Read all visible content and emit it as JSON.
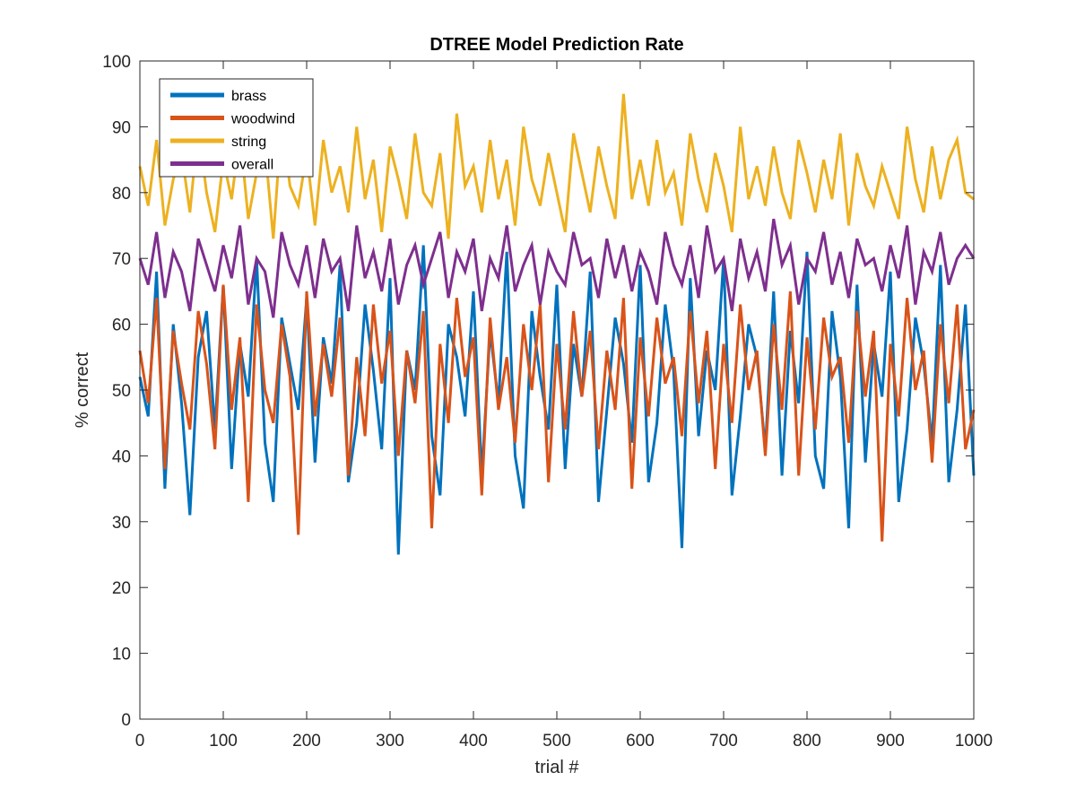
{
  "chart_data": {
    "type": "line",
    "title": "DTREE Model Prediction Rate",
    "xlabel": "trial #",
    "ylabel": "% correct",
    "xlim": [
      0,
      1000
    ],
    "ylim": [
      0,
      100
    ],
    "xticks": [
      0,
      100,
      200,
      300,
      400,
      500,
      600,
      700,
      800,
      900,
      1000
    ],
    "yticks": [
      0,
      10,
      20,
      30,
      40,
      50,
      60,
      70,
      80,
      90,
      100
    ],
    "grid": false,
    "legend_position": "top-left",
    "x_step": 100,
    "series": [
      {
        "name": "brass",
        "color": "#0072BD",
        "values": [
          52,
          46,
          68,
          35,
          60,
          48,
          31,
          55,
          62,
          44,
          66,
          38,
          57,
          49,
          70,
          42,
          33,
          61,
          54,
          47,
          64,
          39,
          58,
          51,
          69,
          36,
          45,
          63,
          53,
          41,
          67,
          25,
          56,
          50,
          72,
          43,
          34,
          60,
          55,
          46,
          65,
          37,
          59,
          48,
          71,
          40,
          32,
          62,
          52,
          44,
          66,
          38,
          57,
          49,
          68,
          33,
          47,
          61,
          54,
          42,
          69,
          36,
          45,
          63,
          53,
          26,
          67,
          43,
          56,
          50,
          70,
          34,
          46,
          60,
          55,
          41,
          65,
          37,
          59,
          48,
          71,
          40,
          35,
          62,
          52,
          29,
          66,
          39,
          57,
          49,
          68,
          33,
          44,
          61,
          54,
          42,
          69,
          36,
          47,
          63,
          37
        ]
      },
      {
        "name": "woodwind",
        "color": "#D95319",
        "values": [
          56,
          48,
          64,
          38,
          59,
          51,
          44,
          62,
          54,
          41,
          66,
          47,
          58,
          33,
          63,
          50,
          45,
          60,
          52,
          28,
          65,
          46,
          57,
          49,
          61,
          37,
          55,
          43,
          63,
          51,
          59,
          40,
          56,
          48,
          62,
          29,
          57,
          45,
          64,
          52,
          58,
          34,
          61,
          47,
          55,
          42,
          60,
          50,
          63,
          36,
          57,
          44,
          62,
          49,
          59,
          41,
          56,
          47,
          64,
          35,
          58,
          46,
          61,
          51,
          55,
          43,
          62,
          48,
          59,
          38,
          57,
          45,
          63,
          50,
          56,
          40,
          60,
          47,
          65,
          37,
          58,
          44,
          61,
          52,
          55,
          42,
          62,
          49,
          59,
          27,
          57,
          46,
          64,
          50,
          56,
          39,
          60,
          48,
          63,
          41,
          47
        ]
      },
      {
        "name": "string",
        "color": "#EDB120",
        "values": [
          84,
          78,
          88,
          75,
          82,
          86,
          77,
          90,
          80,
          74,
          85,
          79,
          89,
          76,
          83,
          87,
          73,
          91,
          81,
          78,
          86,
          75,
          88,
          80,
          84,
          77,
          90,
          79,
          85,
          74,
          87,
          82,
          76,
          89,
          80,
          78,
          86,
          73,
          92,
          81,
          84,
          77,
          88,
          79,
          85,
          75,
          90,
          82,
          78,
          86,
          80,
          74,
          89,
          83,
          77,
          87,
          81,
          76,
          95,
          79,
          85,
          78,
          88,
          80,
          83,
          75,
          89,
          82,
          77,
          86,
          81,
          74,
          90,
          79,
          84,
          78,
          87,
          80,
          76,
          88,
          83,
          77,
          85,
          79,
          89,
          75,
          86,
          81,
          78,
          84,
          80,
          76,
          90,
          82,
          77,
          87,
          79,
          85,
          88,
          80,
          79
        ]
      },
      {
        "name": "overall",
        "color": "#7E2F8E",
        "values": [
          70,
          66,
          74,
          64,
          71,
          68,
          62,
          73,
          69,
          65,
          72,
          67,
          75,
          63,
          70,
          68,
          61,
          74,
          69,
          66,
          72,
          64,
          73,
          68,
          70,
          62,
          75,
          67,
          71,
          65,
          73,
          63,
          69,
          72,
          66,
          70,
          74,
          64,
          71,
          68,
          73,
          62,
          70,
          67,
          75,
          65,
          69,
          72,
          63,
          71,
          68,
          66,
          74,
          69,
          70,
          64,
          73,
          67,
          72,
          65,
          71,
          68,
          63,
          74,
          69,
          66,
          72,
          64,
          75,
          68,
          70,
          62,
          73,
          67,
          71,
          65,
          76,
          69,
          72,
          63,
          70,
          68,
          74,
          66,
          71,
          64,
          73,
          69,
          70,
          65,
          72,
          67,
          75,
          63,
          71,
          68,
          74,
          66,
          70,
          72,
          70
        ]
      }
    ]
  }
}
